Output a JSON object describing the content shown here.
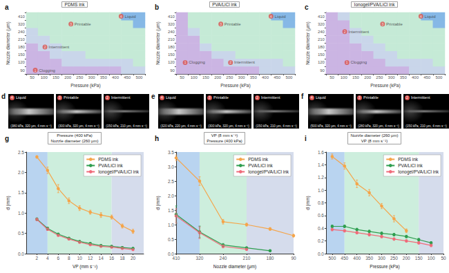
{
  "chart_data": [
    {
      "panel": "a",
      "type": "heatmap",
      "title": "PDMS ink",
      "x_label": "Pressure (kPa)",
      "y_label": "Nozzle diameter (μm)",
      "x": [
        50,
        100,
        150,
        200,
        250,
        300,
        350,
        400,
        450,
        500
      ],
      "y": [
        90,
        120,
        150,
        180,
        210,
        240,
        320,
        410
      ],
      "states": [
        {
          "id": 1,
          "name": "Clogging",
          "color": "#cbb5e3"
        },
        {
          "id": 2,
          "name": "Intermittent",
          "color": "#c9d6ea"
        },
        {
          "id": 3,
          "name": "Printable",
          "color": "#c5ead6"
        },
        {
          "id": 4,
          "name": "Liquid",
          "color": "#86b8e6"
        }
      ],
      "cells": [
        [
          1,
          1,
          1,
          1,
          1,
          1,
          1,
          1,
          2,
          2
        ],
        [
          1,
          1,
          1,
          2,
          2,
          2,
          2,
          2,
          2,
          3
        ],
        [
          1,
          1,
          2,
          2,
          2,
          3,
          3,
          3,
          3,
          3
        ],
        [
          1,
          2,
          2,
          3,
          3,
          3,
          3,
          3,
          3,
          3
        ],
        [
          2,
          2,
          3,
          3,
          3,
          3,
          3,
          3,
          3,
          3
        ],
        [
          2,
          3,
          3,
          3,
          3,
          3,
          3,
          3,
          3,
          3
        ],
        [
          3,
          3,
          3,
          3,
          3,
          3,
          3,
          3,
          3,
          4
        ],
        [
          3,
          3,
          3,
          3,
          3,
          3,
          3,
          3,
          4,
          4
        ]
      ],
      "annotations": [
        {
          "id": 4,
          "text": "Liquid",
          "x": 450,
          "y": 410
        },
        {
          "id": 3,
          "text": "Printable",
          "x": 250,
          "y": 320
        },
        {
          "id": 2,
          "text": "Intermittent",
          "x": 150,
          "y": 180
        },
        {
          "id": 1,
          "text": "Clogging",
          "x": 100,
          "y": 90
        }
      ],
      "grid": false
    },
    {
      "panel": "b",
      "type": "heatmap",
      "title": "PVA/LiCl ink",
      "x_label": "Pressure (kPa)",
      "y_label": "Nozzle diameter (μm)",
      "x": [
        50,
        100,
        150,
        200,
        250,
        300,
        350,
        400,
        450,
        500
      ],
      "y": [
        90,
        120,
        150,
        180,
        210,
        240,
        320,
        410
      ],
      "states": [
        {
          "id": 1,
          "name": "Clogging",
          "color": "#cbb5e3"
        },
        {
          "id": 2,
          "name": "Intermittent",
          "color": "#c9d6ea"
        },
        {
          "id": 3,
          "name": "Printable",
          "color": "#c5ead6"
        },
        {
          "id": 4,
          "name": "Liquid",
          "color": "#86b8e6"
        }
      ],
      "cells": [
        [
          1,
          1,
          1,
          1,
          1,
          1,
          1,
          2,
          2,
          2
        ],
        [
          1,
          1,
          1,
          1,
          2,
          2,
          2,
          2,
          2,
          3
        ],
        [
          1,
          1,
          1,
          2,
          2,
          3,
          3,
          3,
          3,
          3
        ],
        [
          1,
          1,
          2,
          3,
          3,
          3,
          3,
          3,
          3,
          3
        ],
        [
          1,
          1,
          3,
          3,
          3,
          3,
          3,
          3,
          3,
          3
        ],
        [
          1,
          2,
          3,
          3,
          3,
          3,
          3,
          3,
          3,
          3
        ],
        [
          1,
          3,
          3,
          3,
          3,
          3,
          3,
          3,
          3,
          4
        ],
        [
          1,
          3,
          3,
          3,
          3,
          3,
          3,
          3,
          4,
          4
        ]
      ],
      "annotations": [
        {
          "id": 4,
          "text": "Liquid",
          "x": 450,
          "y": 410
        },
        {
          "id": 3,
          "text": "Printable",
          "x": 250,
          "y": 320
        },
        {
          "id": 2,
          "text": "Intermittent",
          "x": 300,
          "y": 120
        },
        {
          "id": 1,
          "text": "Clogging",
          "x": 100,
          "y": 120
        }
      ],
      "grid": false
    },
    {
      "panel": "c",
      "type": "heatmap",
      "title": "Ionogel/PVA/LiCl ink",
      "x_label": "Pressure (kPa)",
      "y_label": "Nozzle diameter (μm)",
      "x": [
        50,
        100,
        150,
        200,
        250,
        300,
        350,
        400,
        450,
        500
      ],
      "y": [
        90,
        120,
        150,
        180,
        210,
        240,
        320,
        410
      ],
      "states": [
        {
          "id": 1,
          "name": "Clogging",
          "color": "#cbb5e3"
        },
        {
          "id": 2,
          "name": "Intermittent",
          "color": "#c9d6ea"
        },
        {
          "id": 3,
          "name": "Printable",
          "color": "#c5ead6"
        },
        {
          "id": 4,
          "name": "Liquid",
          "color": "#86b8e6"
        }
      ],
      "cells": [
        [
          1,
          1,
          1,
          1,
          1,
          1,
          1,
          2,
          2,
          2
        ],
        [
          1,
          1,
          1,
          1,
          1,
          2,
          2,
          2,
          2,
          3
        ],
        [
          1,
          1,
          1,
          1,
          2,
          2,
          3,
          3,
          3,
          3
        ],
        [
          1,
          1,
          1,
          2,
          2,
          3,
          3,
          3,
          3,
          3
        ],
        [
          1,
          1,
          2,
          2,
          3,
          3,
          3,
          3,
          3,
          3
        ],
        [
          1,
          1,
          2,
          3,
          3,
          3,
          3,
          3,
          3,
          3
        ],
        [
          1,
          1,
          3,
          3,
          3,
          3,
          3,
          3,
          3,
          4
        ],
        [
          1,
          2,
          3,
          3,
          3,
          3,
          3,
          3,
          4,
          4
        ]
      ],
      "annotations": [
        {
          "id": 4,
          "text": "Liquid",
          "x": 450,
          "y": 410
        },
        {
          "id": 3,
          "text": "Printable",
          "x": 300,
          "y": 320
        },
        {
          "id": 2,
          "text": "Intermittent",
          "x": 150,
          "y": 240
        },
        {
          "id": 1,
          "text": "Clogging",
          "x": 150,
          "y": 120
        }
      ],
      "grid": false
    },
    {
      "panel": "g",
      "type": "line",
      "subtitle": "Pressure (400 kPa)\nNozzle diameter (260 μm)",
      "x_label": "VP (mm s⁻¹)",
      "y_label": "d (mm)",
      "x": [
        2,
        4,
        6,
        8,
        10,
        12,
        14,
        16,
        18,
        20
      ],
      "xlim": [
        0,
        22
      ],
      "xticks": [
        2,
        4,
        6,
        8,
        10,
        12,
        14,
        16,
        18,
        20
      ],
      "ylim": [
        0,
        2.5
      ],
      "yticks": [
        {
          "value": 0,
          "label": "0.0"
        },
        0.5,
        {
          "value": 1,
          "label": "1.0"
        },
        1.5,
        {
          "value": 2,
          "label": "2.0"
        },
        2.5
      ],
      "series": [
        {
          "name": "PDMS ink",
          "color": "#f5a54a",
          "values": [
            2.38,
            2.05,
            1.6,
            1.3,
            1.12,
            1.02,
            0.95,
            0.9,
            0.68,
            0.55
          ],
          "errors": [
            0.03,
            0.08,
            0.1,
            0.07,
            0.06,
            0.05,
            0.06,
            0.05,
            0.05,
            0.05
          ]
        },
        {
          "name": "PVA/LiCl ink",
          "color": "#2e9e4f",
          "values": [
            0.85,
            0.62,
            0.48,
            0.38,
            0.3,
            0.25,
            0.2,
            0.18,
            0.15,
            0.13
          ],
          "errors": [
            0.03,
            0.03,
            0.02,
            0.02,
            0.02,
            0.02,
            0.02,
            0.02,
            0.02,
            0.02
          ]
        },
        {
          "name": "Ionogel/PVA/LiCl ink",
          "color": "#f06b7a",
          "values": [
            0.84,
            0.6,
            0.45,
            0.36,
            0.28,
            0.22,
            0.18,
            0.16,
            0.13,
            0.1
          ],
          "errors": [
            0.03,
            0.03,
            0.02,
            0.02,
            0.02,
            0.02,
            0.02,
            0.02,
            0.02,
            0.02
          ]
        }
      ],
      "regions": [
        {
          "from": 0,
          "to": 4,
          "color": "#b9d4f0"
        },
        {
          "from": 4,
          "to": 16,
          "color": "#cdeedd"
        },
        {
          "from": 16,
          "to": 22,
          "color": "#d5dcec"
        }
      ],
      "marker": "circle",
      "line_style": "solid",
      "legend": "upper right",
      "grid": false
    },
    {
      "panel": "h",
      "type": "line",
      "subtitle": "VP (8 mm s⁻¹)\nPressure (400 kPa)",
      "x_label": "Nozzle diameter (μm)",
      "y_label": "d (mm)",
      "categories": [
        410,
        320,
        240,
        210,
        180,
        90
      ],
      "ylim": [
        0,
        3.5
      ],
      "yticks": [
        {
          "value": 0,
          "label": "0.0"
        },
        0.5,
        {
          "value": 1,
          "label": "1.0"
        },
        1.5,
        {
          "value": 2,
          "label": "2.0"
        },
        2.5,
        {
          "value": 3,
          "label": "3.0"
        },
        3.5
      ],
      "series": [
        {
          "name": "PDMS ink",
          "color": "#f5a54a",
          "values": [
            3.3,
            2.5,
            1.1,
            1.0,
            0.85,
            0.62
          ],
          "errors": [
            0.1,
            0.15,
            0.08,
            0.05,
            0.05,
            0.05
          ]
        },
        {
          "name": "PVA/LiCl ink",
          "color": "#2e9e4f",
          "values": [
            1.35,
            0.75,
            0.3,
            0.2,
            0.1,
            null
          ],
          "errors": [
            0.3,
            0.2,
            0.05,
            0.03,
            0.02,
            null
          ]
        },
        {
          "name": "Ionogel/PVA/LiCl ink",
          "color": "#f06b7a",
          "values": [
            1.3,
            0.72,
            0.25,
            0.15,
            null,
            null
          ],
          "errors": [
            0.25,
            0.2,
            0.05,
            0.03,
            null,
            null
          ]
        }
      ],
      "regions": [
        {
          "from": 410,
          "to": 320,
          "color": "#b9d4f0"
        },
        {
          "from": 320,
          "to": 210,
          "color": "#cdeedd"
        },
        {
          "from": 210,
          "to": 90,
          "color": "#d5dcec"
        }
      ],
      "marker": "circle",
      "line_style": "solid",
      "legend": "upper right",
      "grid": false
    },
    {
      "panel": "i",
      "type": "line",
      "subtitle": "Nozzle diameter (260 μm)\nVP (8 mm s⁻¹)",
      "x_label": "Pressure (kPa)",
      "y_label": "d (mm)",
      "x": [
        500,
        450,
        400,
        350,
        300,
        250,
        200,
        150,
        100
      ],
      "xlim": [
        525,
        50
      ],
      "xticks": [
        50,
        100,
        150,
        200,
        250,
        300,
        350,
        400,
        450,
        500
      ],
      "ylim": [
        0,
        1.6
      ],
      "yticks": [
        {
          "value": 0,
          "label": "0.0"
        },
        0.2,
        0.4,
        0.6,
        0.8,
        {
          "value": 1,
          "label": "1.0"
        },
        1.2,
        1.4,
        1.6
      ],
      "series": [
        {
          "name": "PDMS ink",
          "color": "#f5a54a",
          "values": [
            1.53,
            1.38,
            1.1,
            0.96,
            0.75,
            0.55,
            0.36,
            null,
            null
          ],
          "errors": [
            0.04,
            0.05,
            0.06,
            0.05,
            0.04,
            0.05,
            0.03,
            null,
            null
          ]
        },
        {
          "name": "PVA/LiCl ink",
          "color": "#2e9e4f",
          "values": [
            0.43,
            0.43,
            0.38,
            0.35,
            0.32,
            0.3,
            0.27,
            0.22,
            0.17
          ],
          "errors": [
            0.02,
            0.02,
            0.02,
            0.02,
            0.02,
            0.02,
            0.02,
            0.02,
            0.02
          ]
        },
        {
          "name": "Ionogel/PVA/LiCl ink",
          "color": "#f06b7a",
          "values": [
            0.38,
            0.36,
            0.33,
            0.3,
            0.27,
            0.23,
            0.2,
            0.17,
            0.13
          ],
          "errors": [
            0.02,
            0.02,
            0.02,
            0.02,
            0.02,
            0.02,
            0.02,
            0.02,
            0.02
          ]
        }
      ],
      "regions": [
        {
          "from": 525,
          "to": 450,
          "color": "#b9d4f0"
        },
        {
          "from": 450,
          "to": 150,
          "color": "#cdeedd"
        },
        {
          "from": 150,
          "to": 50,
          "color": "#d5dcec"
        }
      ],
      "marker": "circle",
      "line_style": "solid",
      "legend": "upper right",
      "grid": false
    }
  ],
  "photos": [
    {
      "panel": "d",
      "frames": [
        {
          "id": 4,
          "state": "Liquid",
          "caption": "(380 kPa, 320 μm, 4 mm s⁻¹)"
        },
        {
          "id": 3,
          "state": "Printable",
          "caption": "(300 kPa, 320 μm, 4 mm s⁻¹)"
        },
        {
          "id": 2,
          "state": "Intermittent",
          "caption": "(150 kPa, 210 μm, 4 mm s⁻¹)"
        }
      ]
    },
    {
      "panel": "e",
      "frames": [
        {
          "id": 4,
          "state": "Liquid",
          "caption": "(320 kPa, 220 μm, 4 mm s⁻¹)"
        },
        {
          "id": 3,
          "state": "Printable",
          "caption": "(300 kPa, 320 μm, 4 mm s⁻¹)"
        },
        {
          "id": 2,
          "state": "Intermittent",
          "caption": "(150 kPa, 210 μm, 4 mm s⁻¹)"
        }
      ]
    },
    {
      "panel": "f",
      "frames": [
        {
          "id": 4,
          "state": "Liquid",
          "caption": "(500 kPa, 320 μm, 4 mm s⁻¹)"
        },
        {
          "id": 3,
          "state": "Printable",
          "caption": "(280 kPa, 320 μm, 4 mm s⁻¹)"
        },
        {
          "id": 2,
          "state": "Intermittent",
          "caption": "(150 kPa, 210 μm, 4 mm s⁻¹)"
        }
      ]
    }
  ]
}
